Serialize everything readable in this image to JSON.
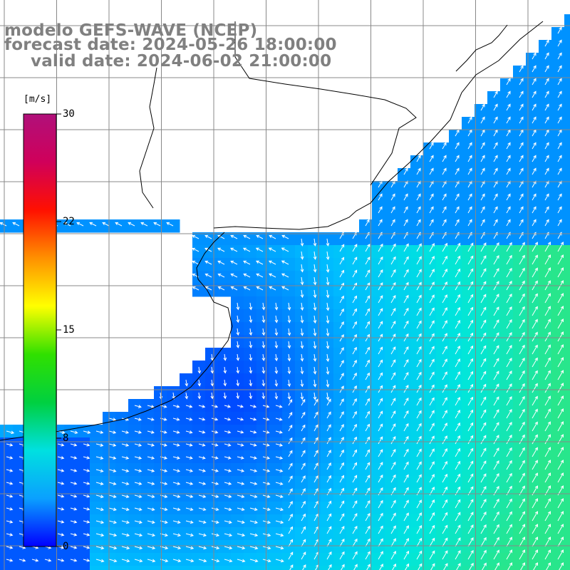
{
  "header": {
    "title": "modelo GEFS-WAVE (NCEP)",
    "forecast_date": "forecast date: 2024-05-26 18:00:00",
    "valid_date": "valid date: 2024-06-02 21:00:00"
  },
  "colorbar": {
    "unit": "[m/s]",
    "ticks": [
      "30",
      "22",
      "15",
      "8",
      "0"
    ],
    "min": 0,
    "max": 30,
    "colors": [
      "#0000ff",
      "#0aa0ff",
      "#00e0e0",
      "#00d040",
      "#30e000",
      "#ffff00",
      "#ff9000",
      "#ff1000",
      "#d0005a",
      "#b0107a"
    ]
  },
  "map": {
    "ocean_low": "#0000ff",
    "ocean_high": "#20e0b0",
    "land": "#ffffff",
    "coast": "#000000",
    "grid": "#888888",
    "arrow_color": "#ffffff"
  }
}
